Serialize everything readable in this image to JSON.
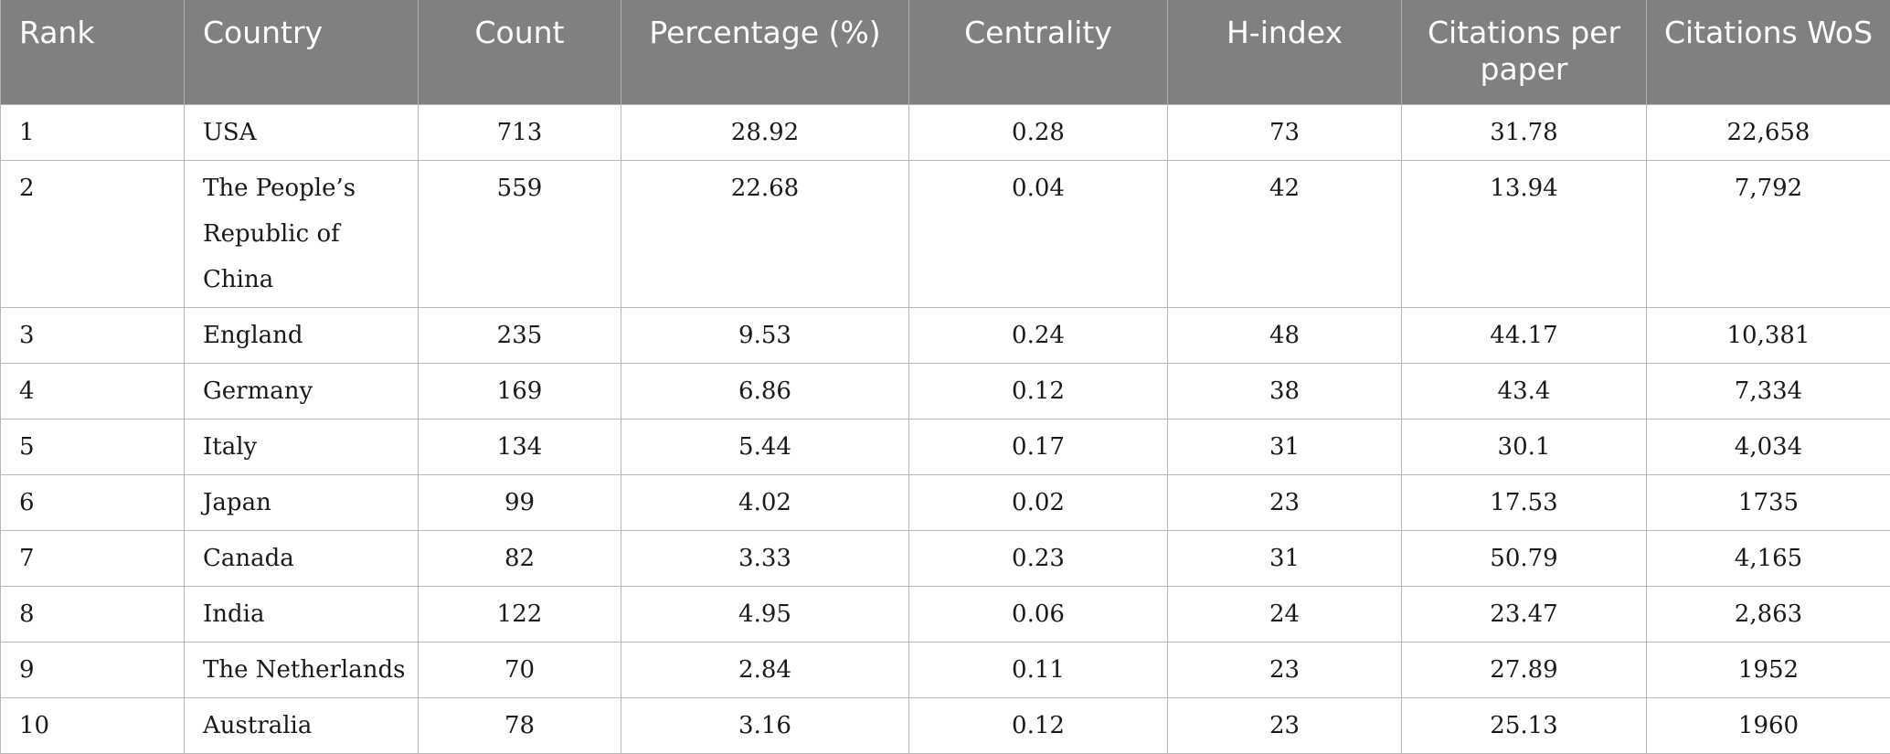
{
  "headers": [
    "Rank",
    "Country",
    "Count",
    "Percentage (%)",
    "Centrality",
    "H-index",
    "Citations per paper",
    "Citations WoS"
  ],
  "rows": [
    [
      "1",
      "USA",
      "713",
      "28.92",
      "0.28",
      "73",
      "31.78",
      "22,658"
    ],
    [
      "2",
      "The People’s Republic of China",
      "559",
      "22.68",
      "0.04",
      "42",
      "13.94",
      "7,792"
    ],
    [
      "3",
      "England",
      "235",
      "9.53",
      "0.24",
      "48",
      "44.17",
      "10,381"
    ],
    [
      "4",
      "Germany",
      "169",
      "6.86",
      "0.12",
      "38",
      "43.4",
      "7,334"
    ],
    [
      "5",
      "Italy",
      "134",
      "5.44",
      "0.17",
      "31",
      "30.1",
      "4,034"
    ],
    [
      "6",
      "Japan",
      "99",
      "4.02",
      "0.02",
      "23",
      "17.53",
      "1735"
    ],
    [
      "7",
      "Canada",
      "82",
      "3.33",
      "0.23",
      "31",
      "50.79",
      "4,165"
    ],
    [
      "8",
      "India",
      "122",
      "4.95",
      "0.06",
      "24",
      "23.47",
      "2,863"
    ],
    [
      "9",
      "The Netherlands",
      "70",
      "2.84",
      "0.11",
      "23",
      "27.89",
      "1952"
    ],
    [
      "10",
      "Australia",
      "78",
      "3.16",
      "0.12",
      "23",
      "25.13",
      "1960"
    ]
  ]
}
